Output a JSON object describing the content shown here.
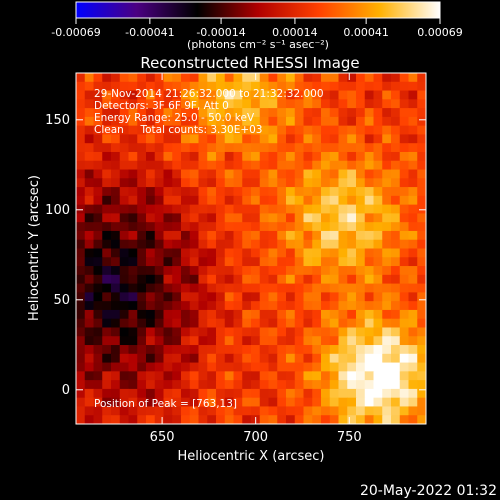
{
  "colorbar": {
    "tick_labels": [
      "-0.00069",
      "-0.00041",
      "-0.00014",
      "0.00014",
      "0.00041",
      "0.00069"
    ],
    "tick_values": [
      -0.00069,
      -0.00041,
      -0.00014,
      0.00014,
      0.00041,
      0.00069
    ],
    "range": [
      -0.00069,
      0.00069
    ],
    "units_label": "(photons cm⁻² s⁻¹ asec⁻²)",
    "colors": [
      "#0000ff",
      "#4b0082",
      "#000000",
      "#b00000",
      "#ff4000",
      "#ffb000",
      "#ffffff"
    ]
  },
  "chart_data": {
    "type": "heatmap",
    "title": "Reconstructed RHESSI Image",
    "xlabel": "Heliocentric X (arcsec)",
    "ylabel": "Heliocentric Y (arcsec)",
    "xlim": [
      604,
      791
    ],
    "ylim": [
      -19,
      176
    ],
    "x_ticks": [
      650,
      700,
      750
    ],
    "y_ticks": [
      0,
      50,
      100,
      150
    ],
    "annotations": [
      "29-Nov-2014 21:26:32.000 to 21:32:32.000",
      "Detectors: 3F 6F 9F, Att 0",
      "Energy Range: 25.0 - 50.0 keV",
      "Clean     Total counts: 3.30E+03"
    ],
    "peak_label": "Position of Peak = [763,13]",
    "peak": [
      763,
      13
    ]
  },
  "footer": {
    "timestamp": "20-May-2022 01:32"
  }
}
